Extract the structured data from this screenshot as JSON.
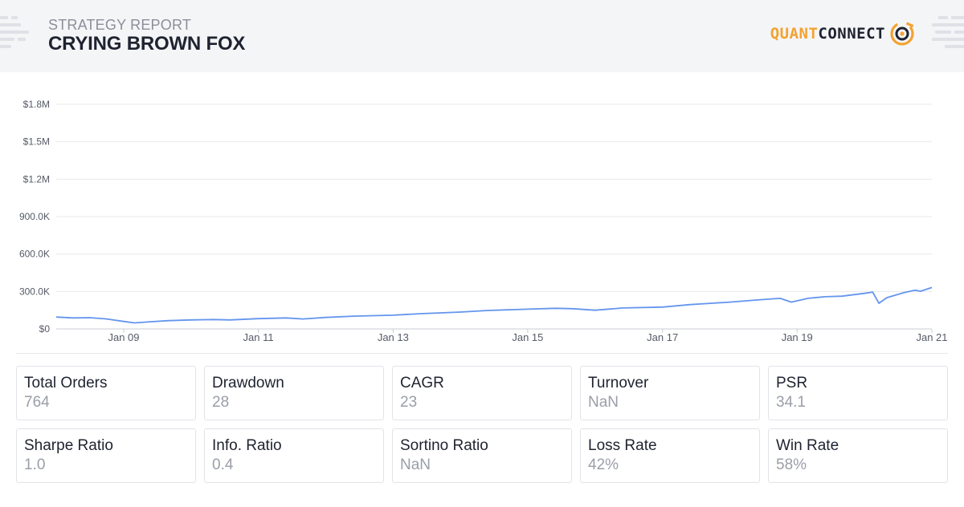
{
  "header": {
    "subtitle": "STRATEGY REPORT",
    "title": "CRYING BROWN FOX",
    "logo_part1": "QUANT",
    "logo_part2": "CONNECT"
  },
  "colors": {
    "line": "#6495ed",
    "logo_orange": "#f4a230",
    "header_bg": "#f4f5f7"
  },
  "chart_data": {
    "type": "line",
    "title": "",
    "xlabel": "",
    "ylabel": "",
    "ylim": [
      0,
      1800000
    ],
    "xlim": [
      "2008-01-01",
      "2021-01-01"
    ],
    "y_ticks": [
      {
        "value": 0,
        "label": "$0"
      },
      {
        "value": 300000,
        "label": "300.0K"
      },
      {
        "value": 600000,
        "label": "600.0K"
      },
      {
        "value": 900000,
        "label": "900.0K"
      },
      {
        "value": 1200000,
        "label": "$1.2M"
      },
      {
        "value": 1500000,
        "label": "$1.5M"
      },
      {
        "value": 1800000,
        "label": "$1.8M"
      }
    ],
    "x_ticks": [
      {
        "value": "2009-01-01",
        "label": "Jan 09"
      },
      {
        "value": "2011-01-01",
        "label": "Jan 11"
      },
      {
        "value": "2013-01-01",
        "label": "Jan 13"
      },
      {
        "value": "2015-01-01",
        "label": "Jan 15"
      },
      {
        "value": "2017-01-01",
        "label": "Jan 17"
      },
      {
        "value": "2019-01-01",
        "label": "Jan 19"
      },
      {
        "value": "2021-01-01",
        "label": "Jan 21"
      }
    ],
    "grid": true,
    "series": [
      {
        "points": [
          [
            "2008-01-01",
            95000
          ],
          [
            "2008-04-01",
            88000
          ],
          [
            "2008-07-01",
            90000
          ],
          [
            "2008-10-01",
            80000
          ],
          [
            "2009-01-01",
            60000
          ],
          [
            "2009-03-01",
            48000
          ],
          [
            "2009-06-01",
            58000
          ],
          [
            "2009-09-01",
            66000
          ],
          [
            "2010-01-01",
            72000
          ],
          [
            "2010-05-01",
            75000
          ],
          [
            "2010-08-01",
            72000
          ],
          [
            "2011-01-01",
            82000
          ],
          [
            "2011-06-01",
            88000
          ],
          [
            "2011-09-01",
            80000
          ],
          [
            "2012-01-01",
            92000
          ],
          [
            "2012-06-01",
            102000
          ],
          [
            "2013-01-01",
            110000
          ],
          [
            "2013-06-01",
            122000
          ],
          [
            "2014-01-01",
            135000
          ],
          [
            "2014-06-01",
            148000
          ],
          [
            "2015-01-01",
            158000
          ],
          [
            "2015-06-01",
            165000
          ],
          [
            "2015-09-01",
            162000
          ],
          [
            "2016-01-01",
            150000
          ],
          [
            "2016-06-01",
            168000
          ],
          [
            "2017-01-01",
            175000
          ],
          [
            "2017-06-01",
            195000
          ],
          [
            "2018-01-01",
            215000
          ],
          [
            "2018-06-01",
            232000
          ],
          [
            "2018-10-01",
            245000
          ],
          [
            "2018-12-01",
            215000
          ],
          [
            "2019-03-01",
            245000
          ],
          [
            "2019-06-01",
            258000
          ],
          [
            "2019-09-01",
            262000
          ],
          [
            "2020-01-01",
            285000
          ],
          [
            "2020-02-15",
            295000
          ],
          [
            "2020-03-20",
            205000
          ],
          [
            "2020-05-01",
            250000
          ],
          [
            "2020-08-01",
            290000
          ],
          [
            "2020-10-01",
            310000
          ],
          [
            "2020-11-01",
            302000
          ],
          [
            "2021-01-01",
            332000
          ]
        ]
      }
    ]
  },
  "metrics": [
    {
      "label": "Total Orders",
      "value": "764"
    },
    {
      "label": "Drawdown",
      "value": "28"
    },
    {
      "label": "CAGR",
      "value": "23"
    },
    {
      "label": "Turnover",
      "value": "NaN"
    },
    {
      "label": "PSR",
      "value": "34.1"
    },
    {
      "label": "Sharpe Ratio",
      "value": "1.0"
    },
    {
      "label": "Info. Ratio",
      "value": "0.4"
    },
    {
      "label": "Sortino Ratio",
      "value": "NaN"
    },
    {
      "label": "Loss Rate",
      "value": "42%"
    },
    {
      "label": "Win Rate",
      "value": "58%"
    }
  ]
}
